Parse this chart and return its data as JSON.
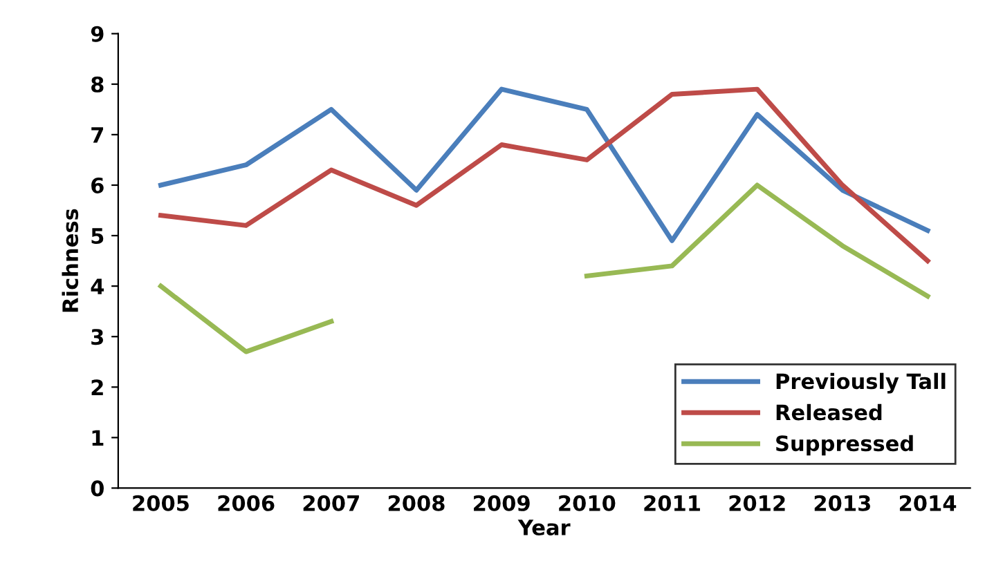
{
  "chart_data": {
    "type": "line",
    "xlabel": "Year",
    "ylabel": "Richness",
    "categories": [
      "2005",
      "2006",
      "2007",
      "2008",
      "2009",
      "2010",
      "2011",
      "2012",
      "2013",
      "2014"
    ],
    "ylim": [
      0,
      9
    ],
    "yticks": [
      0,
      1,
      2,
      3,
      4,
      5,
      6,
      7,
      8,
      9
    ],
    "grid": false,
    "legend": "bottom right",
    "marker": "none",
    "series": [
      {
        "name": "Previously Tall",
        "color": "#4a7ebb",
        "values": [
          6.0,
          6.4,
          7.5,
          5.9,
          7.9,
          7.5,
          4.9,
          7.4,
          5.9,
          5.1
        ]
      },
      {
        "name": "Released",
        "color": "#be4b48",
        "values": [
          5.4,
          5.2,
          6.3,
          5.6,
          6.8,
          6.5,
          7.8,
          7.9,
          6.0,
          4.5
        ]
      },
      {
        "name": "Suppressed",
        "color": "#98b954",
        "values": [
          4.0,
          2.7,
          3.3,
          null,
          null,
          4.2,
          4.4,
          6.0,
          4.8,
          3.8
        ]
      }
    ]
  }
}
